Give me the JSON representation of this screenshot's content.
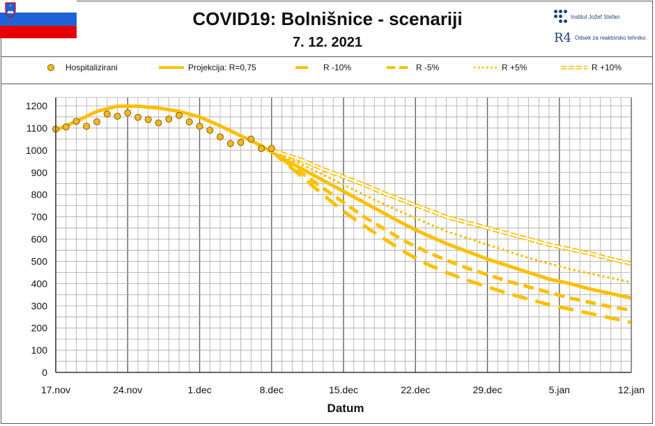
{
  "header": {
    "title": "COVID19: Bolnišnice - scenariji",
    "date": "7. 12. 2021",
    "logo_ijs": "Institut Jožef Stefan",
    "logo_r4_mark": "R4",
    "logo_r4": "Odsek za reaktorsko tehniko"
  },
  "colors": {
    "accent": "#FFC000",
    "marker_fill": "#F2B822",
    "marker_edge": "#806000",
    "grid": "#A8A8A8",
    "grid_major": "#606060",
    "flag_white": "#FFFFFF",
    "flag_blue": "#1F62D6",
    "flag_red": "#E60000"
  },
  "legend": {
    "items": [
      {
        "label": "Hospitalizirani",
        "style": "marker"
      },
      {
        "label": "Projekcija: R=0,75",
        "style": "solid"
      },
      {
        "label": "R -10%",
        "style": "dash-long"
      },
      {
        "label": "R -5%",
        "style": "dash"
      },
      {
        "label": "R +5%",
        "style": "dotted"
      },
      {
        "label": "R +10%",
        "style": "hollow-dash"
      }
    ]
  },
  "chart_data": {
    "type": "line",
    "title": "COVID19: Bolnišnice - scenariji",
    "xlabel": "Datum",
    "ylabel": "",
    "ylim": [
      0,
      1200
    ],
    "yticks": [
      0,
      100,
      200,
      300,
      400,
      500,
      600,
      700,
      800,
      900,
      1000,
      1100,
      1200
    ],
    "xlim_days": [
      0,
      56
    ],
    "xticks": [
      {
        "day": 0,
        "label": "17.nov"
      },
      {
        "day": 7,
        "label": "24.nov"
      },
      {
        "day": 14,
        "label": "1.dec"
      },
      {
        "day": 21,
        "label": "8.dec"
      },
      {
        "day": 28,
        "label": "15.dec"
      },
      {
        "day": 35,
        "label": "22.dec"
      },
      {
        "day": 42,
        "label": "29.dec"
      },
      {
        "day": 49,
        "label": "5.jan"
      },
      {
        "day": 56,
        "label": "12.jan"
      }
    ],
    "series": [
      {
        "name": "Hospitalizirani",
        "style": "marker",
        "x": [
          0,
          1,
          2,
          3,
          4,
          5,
          6,
          7,
          8,
          9,
          10,
          11,
          12,
          13,
          14,
          15,
          16,
          17,
          18,
          19,
          20,
          21
        ],
        "values": [
          1095,
          1105,
          1130,
          1108,
          1128,
          1163,
          1153,
          1168,
          1148,
          1138,
          1123,
          1140,
          1157,
          1128,
          1108,
          1090,
          1060,
          1030,
          1035,
          1050,
          1008,
          1008
        ]
      },
      {
        "name": "Projekcija: R=0,75",
        "style": "solid",
        "x": [
          0,
          2,
          4,
          6,
          8,
          10,
          12,
          14,
          16,
          18,
          20,
          22,
          24,
          26,
          28,
          30,
          32,
          34,
          36,
          38,
          40,
          42,
          44,
          46,
          48,
          50,
          52,
          54,
          56
        ],
        "values": [
          1090,
          1130,
          1175,
          1198,
          1198,
          1190,
          1175,
          1150,
          1110,
          1065,
          1020,
          965,
          915,
          865,
          815,
          765,
          715,
          665,
          620,
          580,
          545,
          510,
          480,
          450,
          420,
          400,
          375,
          355,
          335
        ]
      },
      {
        "name": "R -10%",
        "style": "dash-long",
        "x": [
          21,
          22,
          24,
          26,
          28,
          30,
          32,
          34,
          36,
          38,
          40,
          42,
          44,
          46,
          48,
          50,
          52,
          54,
          56
        ],
        "values": [
          1000,
          955,
          880,
          800,
          725,
          660,
          600,
          540,
          490,
          450,
          415,
          385,
          355,
          330,
          305,
          285,
          265,
          245,
          225
        ]
      },
      {
        "name": "R -5%",
        "style": "dash",
        "x": [
          21,
          22,
          24,
          26,
          28,
          30,
          32,
          34,
          36,
          38,
          40,
          42,
          44,
          46,
          48,
          50,
          52,
          54,
          56
        ],
        "values": [
          1000,
          960,
          895,
          830,
          765,
          700,
          645,
          590,
          545,
          505,
          470,
          440,
          410,
          385,
          360,
          335,
          315,
          295,
          280
        ]
      },
      {
        "name": "R +5%",
        "style": "dotted",
        "x": [
          21,
          22,
          24,
          26,
          28,
          30,
          32,
          34,
          36,
          38,
          40,
          42,
          44,
          46,
          48,
          50,
          52,
          54,
          56
        ],
        "values": [
          1000,
          975,
          935,
          890,
          845,
          800,
          755,
          715,
          675,
          635,
          605,
          575,
          545,
          515,
          490,
          465,
          445,
          425,
          405
        ]
      },
      {
        "name": "R +10%",
        "style": "hollow-dash",
        "x": [
          21,
          22,
          24,
          26,
          28,
          30,
          32,
          34,
          36,
          38,
          40,
          42,
          44,
          46,
          48,
          50,
          52,
          54,
          56
        ],
        "values": [
          1000,
          985,
          955,
          915,
          880,
          845,
          805,
          770,
          735,
          700,
          675,
          650,
          625,
          600,
          575,
          555,
          535,
          510,
          490
        ]
      }
    ]
  }
}
